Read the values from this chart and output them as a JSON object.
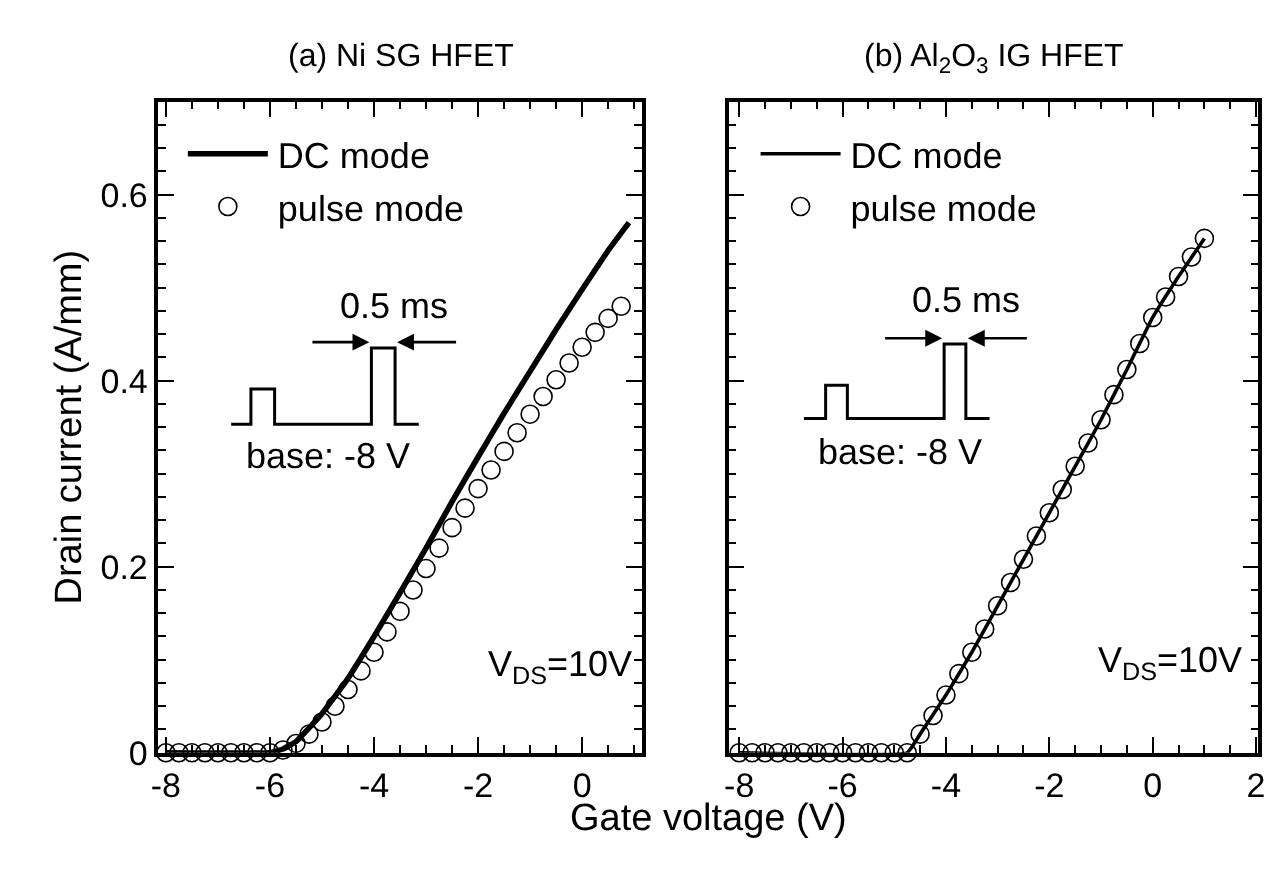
{
  "chart_data": [
    {
      "type": "line",
      "title": "(a) Ni SG HFET",
      "xlabel": "Gate voltage (V)",
      "ylabel": "Drain current (A/mm)",
      "xlim": [
        -8.15,
        1.15
      ],
      "xticks": [
        -8,
        -6,
        -4,
        -2,
        0
      ],
      "ylim": [
        0,
        0.7
      ],
      "yticks": [
        0,
        0.2,
        0.4,
        0.6
      ],
      "legend": "top left",
      "annotations": [
        "0.5 ms",
        "base: -8 V",
        "V$_{DS}$=10V"
      ],
      "series": [
        {
          "name": "DC mode",
          "color": "#000000",
          "line_style": "solid",
          "marker": "none",
          "x": [
            -8,
            -6,
            -5.75,
            -5.5,
            -5,
            -4.5,
            -4,
            -3.5,
            -3,
            -2.5,
            -2,
            -1.5,
            -1,
            -0.5,
            0,
            0.5,
            0.9
          ],
          "values": [
            0,
            0,
            0.004,
            0.012,
            0.042,
            0.08,
            0.125,
            0.172,
            0.22,
            0.27,
            0.318,
            0.365,
            0.41,
            0.455,
            0.498,
            0.54,
            0.57
          ]
        },
        {
          "name": "pulse mode",
          "type": "scatter",
          "color": "#000000",
          "marker": "circle",
          "x": [
            -8,
            -7.75,
            -7.5,
            -7.25,
            -7,
            -6.75,
            -6.5,
            -6.25,
            -6,
            -5.75,
            -5.5,
            -5.25,
            -5,
            -4.75,
            -4.5,
            -4.25,
            -4,
            -3.75,
            -3.5,
            -3.25,
            -3,
            -2.75,
            -2.5,
            -2.25,
            -2,
            -1.75,
            -1.5,
            -1.25,
            -1,
            -0.75,
            -0.5,
            -0.25,
            0,
            0.25,
            0.5,
            0.75
          ],
          "values": [
            0,
            0,
            0,
            0,
            0,
            0,
            0,
            0,
            0,
            0.003,
            0.01,
            0.02,
            0.033,
            0.05,
            0.068,
            0.088,
            0.108,
            0.13,
            0.152,
            0.175,
            0.198,
            0.22,
            0.242,
            0.263,
            0.284,
            0.304,
            0.324,
            0.344,
            0.364,
            0.383,
            0.401,
            0.419,
            0.436,
            0.452,
            0.467,
            0.48
          ]
        }
      ]
    },
    {
      "type": "line",
      "title": "(b) Al$_{2}$O$_{3}$ IG HFET",
      "xlim": [
        -8.2,
        2.04
      ],
      "xticks": [
        -8,
        -6,
        -4,
        -2,
        0,
        2
      ],
      "ylim": [
        0,
        0.7
      ],
      "yticks": [
        0,
        0.2,
        0.4,
        0.6
      ],
      "tick_labels": "x",
      "legend": "top left",
      "annotations": [
        "0.5 ms",
        "base: -8 V",
        "V$_{DS}$=10V"
      ],
      "series": [
        {
          "name": "DC mode",
          "color": "#000000",
          "line_style": "solid",
          "marker": "none",
          "x": [
            -8,
            -4.75,
            -4.5,
            -4,
            -3.5,
            -3,
            -2.5,
            -2,
            -1.5,
            -1,
            -0.5,
            0,
            0.5,
            1
          ],
          "values": [
            0,
            0,
            0.02,
            0.062,
            0.108,
            0.158,
            0.208,
            0.258,
            0.308,
            0.358,
            0.412,
            0.468,
            0.512,
            0.553
          ]
        },
        {
          "name": "pulse mode",
          "type": "scatter",
          "color": "#000000",
          "marker": "circle",
          "x": [
            -8,
            -7.75,
            -7.5,
            -7.25,
            -7,
            -6.75,
            -6.5,
            -6.25,
            -6,
            -5.75,
            -5.5,
            -5.25,
            -5,
            -4.75,
            -4.5,
            -4.25,
            -4,
            -3.75,
            -3.5,
            -3.25,
            -3,
            -2.75,
            -2.5,
            -2.25,
            -2,
            -1.75,
            -1.5,
            -1.25,
            -1,
            -0.75,
            -0.5,
            -0.25,
            0,
            0.25,
            0.5,
            0.75,
            1
          ],
          "values": [
            0,
            0,
            0,
            0,
            0,
            0,
            0,
            0,
            0,
            0,
            0,
            0,
            0,
            0,
            0.02,
            0.04,
            0.062,
            0.085,
            0.108,
            0.133,
            0.158,
            0.183,
            0.208,
            0.233,
            0.258,
            0.283,
            0.308,
            0.333,
            0.358,
            0.385,
            0.412,
            0.44,
            0.468,
            0.49,
            0.512,
            0.533,
            0.553
          ]
        }
      ]
    }
  ]
}
